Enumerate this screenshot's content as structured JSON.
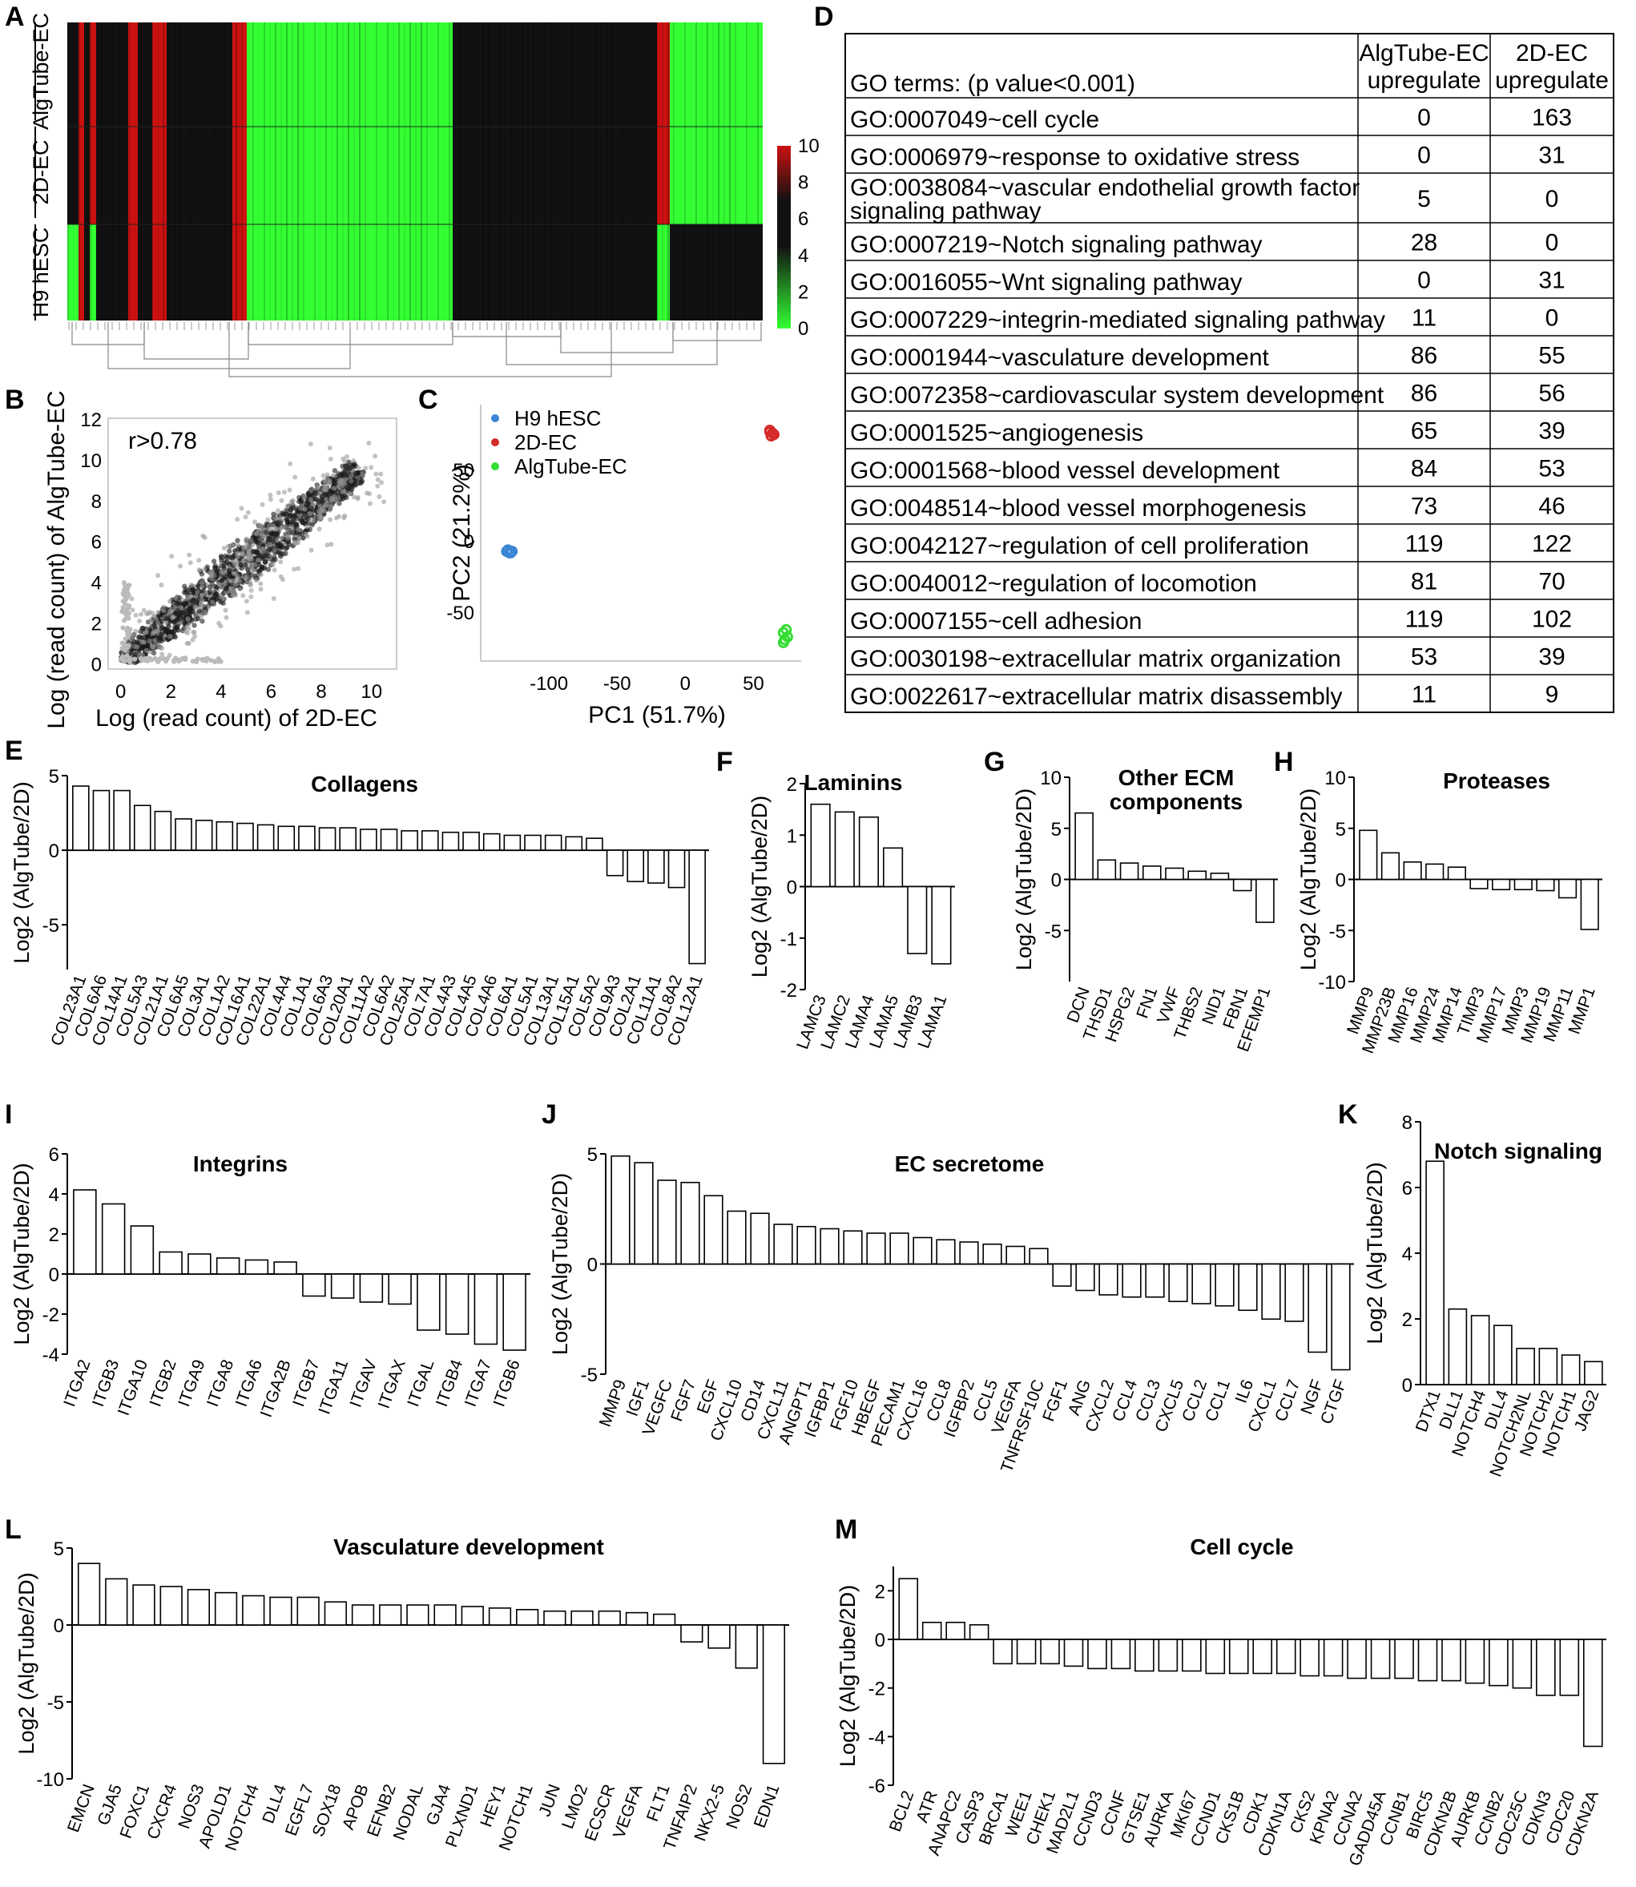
{
  "panels": {
    "A": {
      "letter": "A",
      "row_labels": [
        "AlgTube-EC",
        "2D-EC",
        "H9 hESC"
      ],
      "colorbar_ticks": [
        10,
        8,
        6,
        4,
        2,
        0
      ],
      "colors": {
        "low": "#33ff33",
        "mid": "#111111",
        "high": "#cc1111"
      }
    },
    "B": {
      "letter": "B",
      "annotation": "r>0.78",
      "xlabel": "Log (read count) of 2D-EC",
      "ylabel": "Log (read count) of AlgTube-EC"
    },
    "C": {
      "letter": "C",
      "xlabel": "PC1 (51.7%)",
      "ylabel": "PC2 (21.2%)"
    },
    "D": {
      "letter": "D",
      "header": {
        "term": "GO terms: (p value<0.001)",
        "col1": [
          "AlgTube-EC",
          "upregulate"
        ],
        "col2": [
          "2D-EC",
          "upregulate"
        ]
      },
      "rows": [
        {
          "term": [
            "GO:0007049~cell cycle"
          ],
          "alg": "0",
          "d2": "163"
        },
        {
          "term": [
            "GO:0006979~response to oxidative stress"
          ],
          "alg": "0",
          "d2": "31"
        },
        {
          "term": [
            "GO:0038084~vascular endothelial growth factor",
            "signaling pathway"
          ],
          "alg": "5",
          "d2": "0"
        },
        {
          "term": [
            "GO:0007219~Notch signaling pathway"
          ],
          "alg": "28",
          "d2": "0"
        },
        {
          "term": [
            "GO:0016055~Wnt signaling pathway"
          ],
          "alg": "0",
          "d2": "31"
        },
        {
          "term": [
            "GO:0007229~integrin-mediated signaling pathway"
          ],
          "alg": "11",
          "d2": "0"
        },
        {
          "term": [
            "GO:0001944~vasculature development"
          ],
          "alg": "86",
          "d2": "55"
        },
        {
          "term": [
            "GO:0072358~cardiovascular system development"
          ],
          "alg": "86",
          "d2": "56"
        },
        {
          "term": [
            "GO:0001525~angiogenesis"
          ],
          "alg": "65",
          "d2": "39"
        },
        {
          "term": [
            "GO:0001568~blood vessel development"
          ],
          "alg": "84",
          "d2": "53"
        },
        {
          "term": [
            "GO:0048514~blood vessel morphogenesis"
          ],
          "alg": "73",
          "d2": "46"
        },
        {
          "term": [
            "GO:0042127~regulation of cell proliferation"
          ],
          "alg": "119",
          "d2": "122"
        },
        {
          "term": [
            "GO:0040012~regulation of locomotion"
          ],
          "alg": "81",
          "d2": "70"
        },
        {
          "term": [
            "GO:0007155~cell adhesion"
          ],
          "alg": "119",
          "d2": "102"
        },
        {
          "term": [
            "GO:0030198~extracellular matrix organization"
          ],
          "alg": "53",
          "d2": "39"
        },
        {
          "term": [
            "GO:0022617~extracellular matrix disassembly"
          ],
          "alg": "11",
          "d2": "9"
        }
      ]
    }
  },
  "chart_data": [
    {
      "id": "B",
      "type": "scatter",
      "annotation": "r>0.78",
      "xlabel": "Log (read count) of 2D-EC",
      "ylabel": "Log (read count) of AlgTube-EC",
      "xlim": [
        -0.5,
        11
      ],
      "ylim": [
        -0.3,
        12
      ],
      "xticks": [
        0,
        2,
        4,
        6,
        8,
        10
      ],
      "yticks": [
        0,
        2,
        4,
        6,
        8,
        10,
        12
      ],
      "grid": false,
      "description_points": "dense cloud along diagonal y = x from 0 to 10"
    },
    {
      "id": "C",
      "type": "scatter",
      "xlabel": "PC1 (51.7%)",
      "ylabel": "PC2 (21.2%)",
      "xlim": [
        -150,
        85
      ],
      "ylim": [
        -85,
        95
      ],
      "xticks": [
        -100,
        -50,
        0,
        50
      ],
      "yticks": [
        50,
        0,
        -50
      ],
      "legend_position": "top-left",
      "series": [
        {
          "name": "H9 hESC",
          "color": "#3a86d4",
          "x": [
            -131,
            -129,
            -127,
            -130,
            -128
          ],
          "y": [
            -8,
            -9,
            -8,
            -7,
            -9
          ]
        },
        {
          "name": "2D-EC",
          "color": "#d42a2a",
          "x": [
            62,
            64,
            63,
            65,
            62
          ],
          "y": [
            76,
            75,
            73,
            74,
            77
          ]
        },
        {
          "name": "AlgTube-EC",
          "color": "#33dd33",
          "x": [
            72,
            74,
            73,
            75,
            72
          ],
          "y": [
            -65,
            -63,
            -70,
            -68,
            -72
          ]
        }
      ]
    },
    {
      "id": "E",
      "type": "bar",
      "title": "Collagens",
      "ylabel": "Log2 (AlgTube/2D)",
      "ylim": [
        -8,
        5
      ],
      "yticks": [
        5,
        0,
        -5
      ],
      "categories": [
        "COL23A1",
        "COL6A6",
        "COL14A1",
        "COL5A3",
        "COL21A1",
        "COL6A5",
        "COL3A1",
        "COL1A2",
        "COL16A1",
        "COL22A1",
        "COL4A4",
        "COL1A1",
        "COL6A3",
        "COL20A1",
        "COL11A2",
        "COL6A2",
        "COL25A1",
        "COL7A1",
        "COL4A3",
        "COL4A5",
        "COL4A6",
        "COL6A1",
        "COL5A1",
        "COL13A1",
        "COL15A1",
        "COL5A2",
        "COL9A3",
        "COL2A1",
        "COL11A1",
        "COL8A2",
        "COL12A1"
      ],
      "values": [
        4.3,
        4.0,
        4.0,
        3.0,
        2.6,
        2.1,
        2.0,
        1.9,
        1.8,
        1.7,
        1.6,
        1.6,
        1.5,
        1.5,
        1.4,
        1.4,
        1.3,
        1.3,
        1.2,
        1.2,
        1.1,
        1.0,
        1.0,
        1.0,
        0.9,
        0.8,
        -1.7,
        -2.1,
        -2.2,
        -2.5,
        -7.6
      ]
    },
    {
      "id": "F",
      "type": "bar",
      "title": "Laminins",
      "ylabel": "Log2 (AlgTube/2D)",
      "ylim": [
        -2,
        2
      ],
      "yticks": [
        2,
        1,
        0,
        -1,
        -2
      ],
      "categories": [
        "LAMC3",
        "LAMC2",
        "LAMA4",
        "LAMA5",
        "LAMB3",
        "LAMA1"
      ],
      "values": [
        1.6,
        1.45,
        1.35,
        0.75,
        -1.3,
        -1.5
      ]
    },
    {
      "id": "G",
      "type": "bar",
      "title": "Other ECM components",
      "ylabel": "Log2 (AlgTube/2D)",
      "ylim": [
        -10,
        10
      ],
      "yticks": [
        10,
        5,
        0,
        -5
      ],
      "categories": [
        "DCN",
        "THSD1",
        "HSPG2",
        "FN1",
        "VWF",
        "THBS2",
        "NID1",
        "FBN1",
        "EFEMP1"
      ],
      "values": [
        6.5,
        1.9,
        1.6,
        1.3,
        1.1,
        0.8,
        0.6,
        -1.1,
        -4.2
      ]
    },
    {
      "id": "H",
      "type": "bar",
      "title": "Proteases",
      "ylabel": "Log2 (AlgTube/2D)",
      "ylim": [
        -10,
        10
      ],
      "yticks": [
        10,
        5,
        0,
        -5,
        -10
      ],
      "categories": [
        "MMP9",
        "MMP23B",
        "MMP16",
        "MMP24",
        "MMP14",
        "TIMP3",
        "MMP17",
        "MMP3",
        "MMP19",
        "MMP11",
        "MMP1"
      ],
      "values": [
        4.8,
        2.6,
        1.7,
        1.5,
        1.2,
        -0.9,
        -1.0,
        -1.0,
        -1.1,
        -1.8,
        -4.9
      ]
    },
    {
      "id": "I",
      "type": "bar",
      "title": "Integrins",
      "ylabel": "Log2 (AlgTube/2D)",
      "ylim": [
        -4,
        6
      ],
      "yticks": [
        6,
        4,
        2,
        0,
        -2,
        -4
      ],
      "categories": [
        "ITGA2",
        "ITGB3",
        "ITGA10",
        "ITGB2",
        "ITGA9",
        "ITGA8",
        "ITGA6",
        "ITGA2B",
        "ITGB7",
        "ITGA11",
        "ITGAV",
        "ITGAX",
        "ITGAL",
        "ITGB4",
        "ITGA7",
        "ITGB6"
      ],
      "values": [
        4.2,
        3.5,
        2.4,
        1.1,
        1.0,
        0.8,
        0.7,
        0.6,
        -1.1,
        -1.2,
        -1.4,
        -1.5,
        -2.8,
        -3.0,
        -3.5,
        -3.8
      ]
    },
    {
      "id": "J",
      "type": "bar",
      "title": "EC secretome",
      "ylabel": "Log2 (AlgTube/2D)",
      "ylim": [
        -5,
        5
      ],
      "yticks": [
        5,
        0,
        -5
      ],
      "categories": [
        "MMP9",
        "IGF1",
        "VEGFC",
        "FGF7",
        "EGF",
        "CXCL10",
        "CD14",
        "CXCL11",
        "ANGPT1",
        "IGFBP1",
        "FGF10",
        "HBEGF",
        "PECAM1",
        "CXCL16",
        "CCL8",
        "IGFBP2",
        "CCL5",
        "VEGFA",
        "TNFRSF10C",
        "FGF1",
        "ANG",
        "CXCL2",
        "CCL4",
        "CCL3",
        "CXCL5",
        "CCL2",
        "CCL1",
        "IL6",
        "CXCL1",
        "CCL7",
        "NGF",
        "CTGF"
      ],
      "values": [
        4.9,
        4.6,
        3.8,
        3.7,
        3.1,
        2.4,
        2.3,
        1.8,
        1.7,
        1.6,
        1.5,
        1.4,
        1.4,
        1.2,
        1.1,
        1.0,
        0.9,
        0.8,
        0.7,
        -1.0,
        -1.2,
        -1.4,
        -1.5,
        -1.5,
        -1.7,
        -1.8,
        -1.9,
        -2.1,
        -2.5,
        -2.6,
        -4.0,
        -4.8
      ]
    },
    {
      "id": "K",
      "type": "bar",
      "title": "Notch signaling",
      "ylabel": "Log2 (AlgTube/2D)",
      "ylim": [
        0,
        8
      ],
      "yticks": [
        8,
        6,
        4,
        2,
        0
      ],
      "categories": [
        "DTX1",
        "DLL1",
        "NOTCH4",
        "DLL4",
        "NOTCH2NL",
        "NOTCH2",
        "NOTCH1",
        "JAG2"
      ],
      "values": [
        6.8,
        2.3,
        2.1,
        1.8,
        1.1,
        1.1,
        0.9,
        0.7
      ]
    },
    {
      "id": "L",
      "type": "bar",
      "title": "Vasculature development",
      "ylabel": "Log2 (AlgTube/2D)",
      "ylim": [
        -10,
        5
      ],
      "yticks": [
        5,
        0,
        -5,
        -10
      ],
      "categories": [
        "EMCN",
        "GJA5",
        "FOXC1",
        "CXCR4",
        "NOS3",
        "APOLD1",
        "NOTCH4",
        "DLL4",
        "EGFL7",
        "SOX18",
        "APOB",
        "EFNB2",
        "NODAL",
        "GJA4",
        "PLXND1",
        "HEY1",
        "NOTCH1",
        "JUN",
        "LMO2",
        "ECSCR",
        "VEGFA",
        "FLT1",
        "TNFAIP2",
        "NKX2-5",
        "NOS2",
        "EDN1"
      ],
      "values": [
        4.0,
        3.0,
        2.6,
        2.5,
        2.3,
        2.1,
        1.9,
        1.8,
        1.8,
        1.5,
        1.3,
        1.3,
        1.3,
        1.3,
        1.2,
        1.1,
        1.0,
        0.9,
        0.9,
        0.9,
        0.8,
        0.7,
        -1.1,
        -1.5,
        -2.8,
        -9.0
      ]
    },
    {
      "id": "M",
      "type": "bar",
      "title": "Cell cycle",
      "ylabel": "Log2 (AlgTube/2D)",
      "ylim": [
        -6,
        3
      ],
      "yticks": [
        2,
        0,
        -2,
        -4,
        -6
      ],
      "categories": [
        "BCL2",
        "ATR",
        "ANAPC2",
        "CASP3",
        "BRCA1",
        "WEE1",
        "CHEK1",
        "MAD2L1",
        "CCND3",
        "CCNF",
        "GTSE1",
        "AURKA",
        "MKI67",
        "CCND1",
        "CKS1B",
        "CDK1",
        "CDKN1A",
        "CKS2",
        "KPNA2",
        "CCNA2",
        "GADD45A",
        "CCNB1",
        "BIRC5",
        "CDKN2B",
        "AURKB",
        "CCNB2",
        "CDC25C",
        "CDKN3",
        "CDC20",
        "CDKN2A"
      ],
      "values": [
        2.5,
        0.7,
        0.7,
        0.6,
        -1.0,
        -1.0,
        -1.0,
        -1.1,
        -1.2,
        -1.2,
        -1.3,
        -1.3,
        -1.3,
        -1.4,
        -1.4,
        -1.4,
        -1.4,
        -1.5,
        -1.5,
        -1.6,
        -1.6,
        -1.6,
        -1.7,
        -1.7,
        -1.8,
        -1.9,
        -2.0,
        -2.3,
        -2.3,
        -4.4
      ]
    }
  ]
}
